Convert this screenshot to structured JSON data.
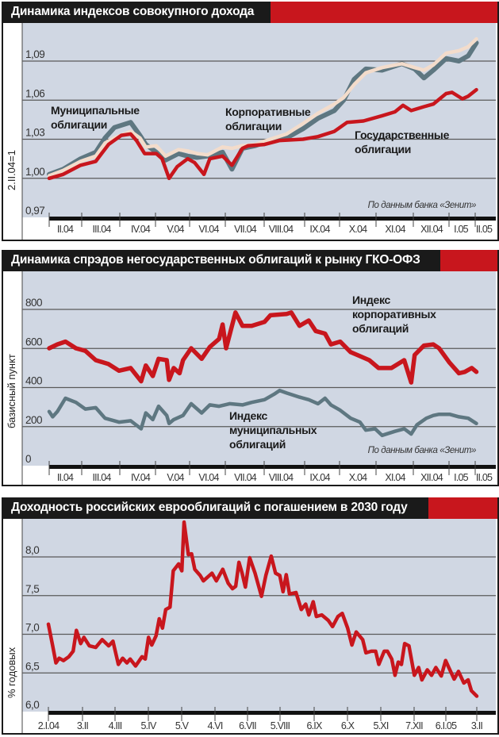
{
  "colors": {
    "red": "#c8161d",
    "gray": "#5e7781",
    "cream": "#f3dccb",
    "plot_bg": "#d0d7e3",
    "title_bg": "#1a1a1a"
  },
  "chart_data": [
    {
      "type": "line",
      "title": "Динамика индексов совокупного дохода",
      "ylabel": "2.II.04=1",
      "xlabel": "",
      "ylim": [
        0.97,
        1.11
      ],
      "yticks": [
        "0,97",
        "1,00",
        "1,03",
        "1,06",
        "1,09"
      ],
      "ytick_values": [
        0.97,
        1.0,
        1.03,
        1.06,
        1.09
      ],
      "xtick_labels": [
        "II.04",
        "III.04",
        "IV.04",
        "V.04",
        "VI.04",
        "VII.04",
        "VIII.04",
        "IX.04",
        "X.04",
        "XI.04",
        "XII.04",
        "I.05",
        "II.05"
      ],
      "x_unit": "days since 2.II.04",
      "source": "По данным банка «Зенит»",
      "annotations": [
        [
          "Муниципальные",
          "облигации"
        ],
        [
          "Корпоративные",
          "облигации"
        ],
        [
          "Государственные",
          "облигации"
        ]
      ],
      "grid": true,
      "series": [
        {
          "name": "Муниципальные облигации",
          "color": "gray",
          "x": [
            0,
            12,
            27,
            40,
            48,
            56,
            70,
            78,
            83,
            92,
            100,
            111,
            119,
            127,
            136,
            149,
            157,
            166,
            177,
            190,
            204,
            218,
            231,
            245,
            253,
            262,
            272,
            286,
            303,
            314,
            322,
            330,
            341,
            352,
            360,
            367
          ],
          "y": [
            1.003,
            1.007,
            1.015,
            1.02,
            1.031,
            1.039,
            1.043,
            1.033,
            1.026,
            1.02,
            1.014,
            1.019,
            1.017,
            1.016,
            1.017,
            1.02,
            1.007,
            1.023,
            1.025,
            1.029,
            1.031,
            1.038,
            1.046,
            1.052,
            1.06,
            1.076,
            1.084,
            1.083,
            1.088,
            1.084,
            1.077,
            1.083,
            1.092,
            1.09,
            1.094,
            1.104
          ]
        },
        {
          "name": "Корпоративные облигации",
          "color": "cream",
          "x": [
            0,
            12,
            27,
            40,
            48,
            56,
            70,
            78,
            83,
            92,
            100,
            111,
            119,
            127,
            136,
            149,
            157,
            166,
            177,
            190,
            204,
            218,
            231,
            245,
            253,
            262,
            272,
            286,
            303,
            314,
            322,
            330,
            341,
            352,
            360,
            367
          ],
          "y": [
            1.002,
            1.006,
            1.013,
            1.017,
            1.027,
            1.031,
            1.036,
            1.031,
            1.024,
            1.025,
            1.017,
            1.022,
            1.021,
            1.019,
            1.018,
            1.024,
            1.023,
            1.025,
            1.026,
            1.03,
            1.034,
            1.042,
            1.05,
            1.057,
            1.062,
            1.072,
            1.081,
            1.085,
            1.088,
            1.085,
            1.083,
            1.087,
            1.096,
            1.098,
            1.101,
            1.107
          ]
        },
        {
          "name": "Государственные облигации",
          "color": "red",
          "x": [
            0,
            12,
            27,
            40,
            45,
            51,
            62,
            70,
            75,
            82,
            92,
            97,
            103,
            110,
            119,
            125,
            133,
            138,
            149,
            157,
            166,
            171,
            185,
            198,
            218,
            231,
            245,
            256,
            270,
            286,
            297,
            304,
            311,
            322,
            330,
            341,
            346,
            355,
            360,
            367
          ],
          "y": [
            1.0,
            1.003,
            1.01,
            1.013,
            1.019,
            1.026,
            1.033,
            1.034,
            1.029,
            1.019,
            1.019,
            1.015,
            1.0,
            1.009,
            1.015,
            1.012,
            1.003,
            1.015,
            1.017,
            1.01,
            1.023,
            1.025,
            1.026,
            1.029,
            1.03,
            1.032,
            1.036,
            1.043,
            1.044,
            1.048,
            1.051,
            1.056,
            1.052,
            1.055,
            1.057,
            1.065,
            1.066,
            1.061,
            1.063,
            1.068
          ]
        }
      ]
    },
    {
      "type": "line",
      "title": "Динамика спрэдов негосударственных облигаций к рынку ГКО-ОФЗ",
      "ylabel": "базисный пункт",
      "xlabel": "",
      "ylim": [
        0,
        900
      ],
      "yticks": [
        "0",
        "200",
        "400",
        "600",
        "800"
      ],
      "ytick_values": [
        0,
        200,
        400,
        600,
        800
      ],
      "xtick_labels": [
        "II.04",
        "III.04",
        "IV.04",
        "V.04",
        "VI.04",
        "VII.04",
        "VIII.04",
        "IX.04",
        "X.04",
        "XI.04",
        "XII.04",
        "I.05",
        "II.05"
      ],
      "x_unit": "days since 2.II.04",
      "source": "По данным банка «Зенит»",
      "annotations": [
        [
          "Индекс",
          "корпоративных",
          "облигаций"
        ],
        [
          "Индекс",
          "муниципальных",
          "облигаций"
        ]
      ],
      "grid": true,
      "series": [
        {
          "name": "Индекс корпоративных облигаций",
          "color": "red",
          "x": [
            0,
            7,
            14,
            23,
            31,
            40,
            51,
            60,
            70,
            79,
            83,
            89,
            94,
            101,
            103,
            107,
            112,
            115,
            122,
            131,
            138,
            146,
            149,
            152,
            160,
            166,
            174,
            185,
            190,
            204,
            208,
            215,
            223,
            229,
            237,
            242,
            250,
            259,
            267,
            275,
            283,
            294,
            305,
            311,
            314,
            322,
            330,
            335,
            344,
            352,
            357,
            363,
            367
          ],
          "y": [
            601,
            621,
            635,
            601,
            588,
            540,
            520,
            486,
            500,
            432,
            513,
            459,
            547,
            540,
            439,
            500,
            473,
            540,
            601,
            547,
            608,
            649,
            723,
            601,
            784,
            716,
            716,
            736,
            770,
            777,
            784,
            716,
            743,
            689,
            676,
            621,
            635,
            581,
            561,
            540,
            500,
            500,
            540,
            426,
            567,
            615,
            621,
            601,
            527,
            473,
            480,
            500,
            480
          ]
        },
        {
          "name": "Индекс муниципальных облигаций",
          "color": "gray",
          "x": [
            0,
            3,
            7,
            14,
            23,
            31,
            40,
            48,
            60,
            70,
            79,
            83,
            89,
            94,
            101,
            103,
            107,
            115,
            122,
            131,
            138,
            146,
            155,
            166,
            174,
            185,
            193,
            198,
            204,
            215,
            223,
            231,
            237,
            242,
            250,
            259,
            267,
            272,
            280,
            286,
            297,
            305,
            311,
            316,
            324,
            330,
            335,
            344,
            352,
            360,
            367
          ],
          "y": [
            277,
            250,
            277,
            345,
            324,
            290,
            297,
            243,
            223,
            230,
            189,
            270,
            236,
            304,
            257,
            216,
            236,
            257,
            317,
            270,
            311,
            304,
            317,
            311,
            324,
            338,
            365,
            385,
            372,
            351,
            338,
            317,
            345,
            311,
            284,
            243,
            223,
            182,
            189,
            155,
            176,
            189,
            162,
            209,
            243,
            257,
            263,
            263,
            250,
            243,
            216
          ]
        }
      ]
    },
    {
      "type": "line",
      "title": "Доходность российских еврооблигаций с погашением в 2030 году",
      "ylabel": "% годовых",
      "xlabel": "",
      "ylim": [
        6.0,
        8.5
      ],
      "yticks": [
        "6,0",
        "6,5",
        "7,0",
        "7,5",
        "8,0"
      ],
      "ytick_values": [
        6.0,
        6.5,
        7.0,
        7.5,
        8.0
      ],
      "xtick_labels": [
        "2.I.04",
        "3.II",
        "4.III",
        "5.IV",
        "5.V",
        "4.VI",
        "6.VII",
        "5.VIII",
        "6.IX",
        "6.X",
        "5.XI",
        "7.XII",
        "6.I.05",
        "3.II"
      ],
      "x_unit": "days since 2.I.04",
      "grid": true,
      "series": [
        {
          "name": "Доходность",
          "color": "red",
          "x": [
            0,
            4,
            7,
            10,
            14,
            19,
            23,
            26,
            30,
            33,
            38,
            44,
            50,
            56,
            60,
            65,
            69,
            73,
            76,
            81,
            87,
            90,
            93,
            96,
            100,
            103,
            106,
            109,
            113,
            116,
            121,
            124,
            126,
            130,
            133,
            136,
            141,
            144,
            152,
            156,
            162,
            167,
            171,
            174,
            177,
            180,
            183,
            187,
            192,
            198,
            202,
            207,
            211,
            215,
            218,
            221,
            224,
            230,
            235,
            239,
            242,
            246,
            249,
            254,
            260,
            264,
            269,
            273,
            278,
            282,
            286,
            292,
            295,
            300,
            304,
            307,
            312,
            315,
            319,
            322,
            325,
            328,
            331,
            335,
            340,
            344,
            347,
            352,
            356,
            360,
            365,
            369,
            372,
            377,
            381,
            386,
            390,
            393,
            398
          ],
          "y": [
            7.13,
            6.85,
            6.63,
            6.69,
            6.66,
            6.71,
            6.78,
            7.05,
            6.88,
            6.96,
            6.85,
            6.83,
            6.93,
            6.85,
            6.91,
            6.61,
            6.69,
            6.63,
            6.68,
            6.59,
            6.71,
            6.68,
            6.96,
            6.86,
            6.98,
            7.2,
            7.08,
            7.32,
            7.35,
            7.82,
            7.91,
            7.82,
            8.45,
            8.03,
            8.04,
            7.84,
            7.76,
            7.69,
            7.79,
            7.69,
            7.84,
            7.66,
            7.59,
            7.62,
            7.93,
            7.79,
            7.61,
            7.99,
            7.79,
            7.49,
            7.76,
            8.01,
            7.79,
            7.76,
            7.55,
            7.77,
            7.52,
            7.54,
            7.32,
            7.39,
            7.25,
            7.42,
            7.23,
            7.25,
            7.18,
            7.1,
            7.23,
            7.27,
            7.08,
            6.86,
            7.03,
            6.93,
            6.76,
            6.78,
            6.78,
            6.61,
            6.78,
            6.78,
            6.68,
            6.47,
            6.64,
            6.61,
            6.88,
            6.85,
            6.47,
            6.57,
            6.41,
            6.54,
            6.47,
            6.57,
            6.46,
            6.66,
            6.57,
            6.42,
            6.52,
            6.37,
            6.41,
            6.27,
            6.2
          ]
        }
      ]
    }
  ]
}
